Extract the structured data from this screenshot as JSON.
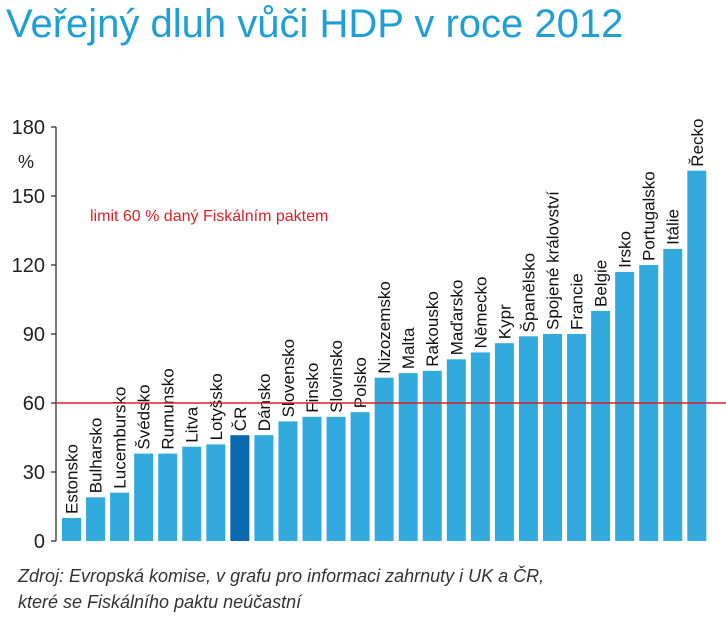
{
  "chart_data": {
    "type": "bar",
    "title": "Veřejný dluh vůči HDP v roce 2012",
    "ylabel": "%",
    "ylim": [
      0,
      180
    ],
    "yticks": [
      0,
      30,
      60,
      90,
      120,
      150,
      180
    ],
    "grid": false,
    "categories": [
      "Estonsko",
      "Bulharsko",
      "Lucembursko",
      "Švédsko",
      "Rumunsko",
      "Litva",
      "Lotyšsko",
      "ČR",
      "Dánsko",
      "Slovensko",
      "Finsko",
      "Slovinsko",
      "Polsko",
      "Nizozemsko",
      "Malta",
      "Rakousko",
      "Maďarsko",
      "Německo",
      "Kypr",
      "Španělsko",
      "Spojené království",
      "Francie",
      "Belgie",
      "Irsko",
      "Portugalsko",
      "Itálie",
      "Řecko"
    ],
    "values": [
      10,
      19,
      21,
      38,
      38,
      41,
      42,
      46,
      46,
      52,
      54,
      54,
      56,
      71,
      73,
      74,
      79,
      82,
      86,
      89,
      90,
      90,
      100,
      117,
      120,
      127,
      161
    ],
    "highlight": "ČR",
    "reference_line": {
      "value": 60,
      "label": "limit 60 % daný Fiskálním paktem"
    },
    "colors": {
      "bar": "#33aadd",
      "highlight": "#0a68ae",
      "reference": "#d8232a",
      "title": "#1f9fd6"
    }
  },
  "source_lines": [
    "Zdroj: Evropská komise, v grafu pro informaci zahrnuty i UK a ČR,",
    "které se Fiskálního paktu neúčastní"
  ]
}
